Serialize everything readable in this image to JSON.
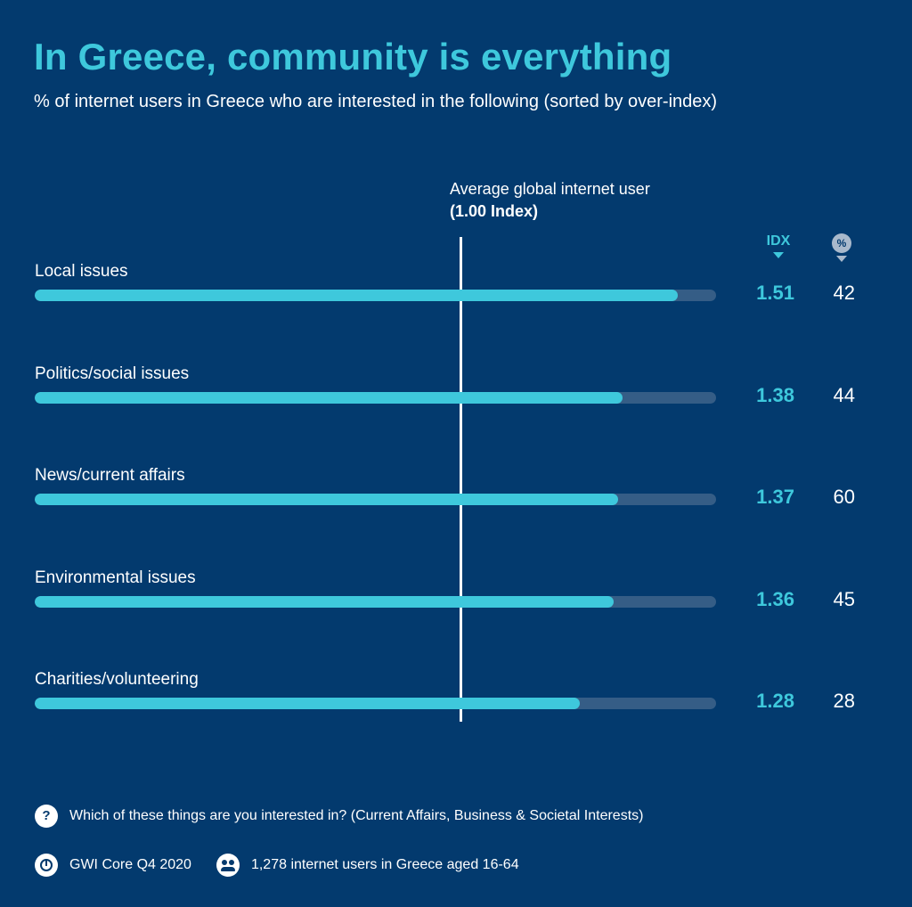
{
  "header": {
    "title": "In Greece, community is everything",
    "subtitle": "% of internet users in Greece who are interested in the following (sorted by over-index)"
  },
  "average_marker": {
    "label_line1": "Average global internet user",
    "label_line2": "(1.00 Index)",
    "value": 1.0
  },
  "columns": {
    "idx_label": "IDX",
    "pct_label": "%"
  },
  "chart_data": {
    "type": "bar",
    "orientation": "horizontal",
    "categories": [
      "Local issues",
      "Politics/social issues",
      "News/current affairs",
      "Environmental issues",
      "Charities/volunteering"
    ],
    "series": [
      {
        "name": "IDX",
        "values": [
          1.51,
          1.38,
          1.37,
          1.36,
          1.28
        ]
      },
      {
        "name": "%",
        "values": [
          42,
          44,
          60,
          45,
          28
        ]
      }
    ],
    "xlim": [
      0,
      1.6
    ],
    "reference_line": 1.0
  },
  "footer": {
    "question": "Which of these things are you interested in? (Current Affairs, Business & Societal Interests)",
    "question_icon": "?",
    "source": "GWI Core Q4 2020",
    "sample": "1,278 internet users in Greece aged 16-64"
  },
  "colors": {
    "background": "#033a6e",
    "accent": "#3ec8dc",
    "track": "#355d86"
  }
}
